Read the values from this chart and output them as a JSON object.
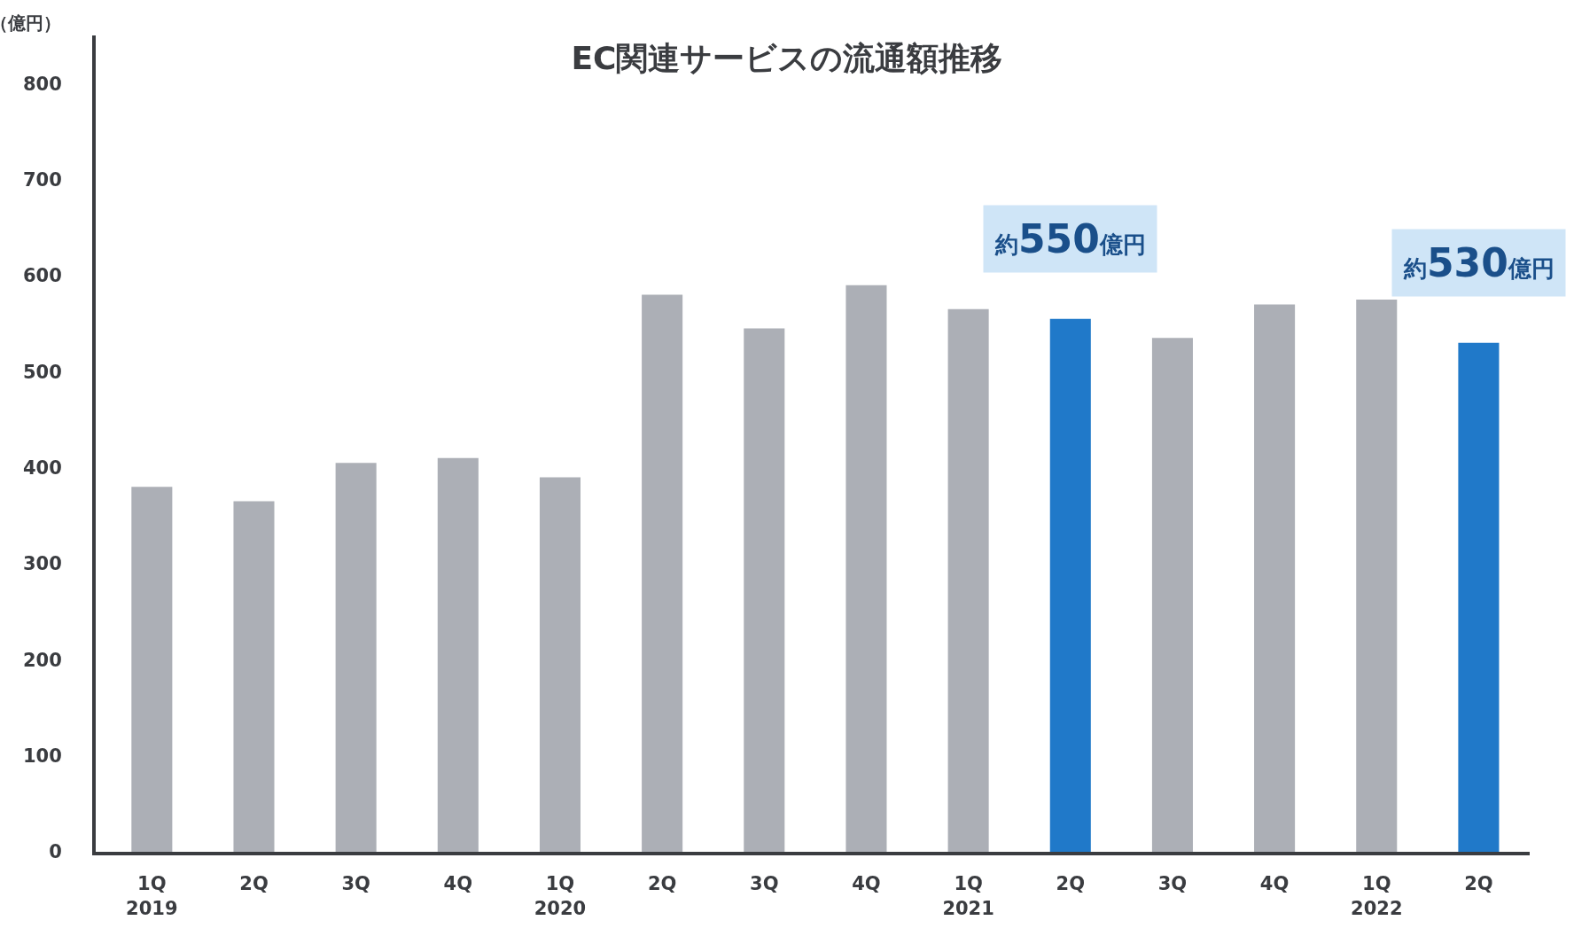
{
  "chart_data": {
    "type": "bar",
    "title": "EC関連サービスの流通額推移",
    "ylabel": "（億円）",
    "categories": [
      "1Q\n2019",
      "2Q",
      "3Q",
      "4Q",
      "1Q\n2020",
      "2Q",
      "3Q",
      "4Q",
      "1Q\n2021",
      "2Q",
      "3Q",
      "4Q",
      "1Q\n2022",
      "2Q"
    ],
    "values": [
      380,
      365,
      405,
      410,
      390,
      580,
      545,
      590,
      565,
      555,
      535,
      570,
      575,
      530
    ],
    "colors": [
      "#acafb6",
      "#acafb6",
      "#acafb6",
      "#acafb6",
      "#acafb6",
      "#acafb6",
      "#acafb6",
      "#acafb6",
      "#acafb6",
      "#2079c9",
      "#acafb6",
      "#acafb6",
      "#acafb6",
      "#2079c9"
    ],
    "ylim": [
      0,
      850
    ],
    "yticks": [
      0,
      100,
      200,
      300,
      400,
      500,
      600,
      700,
      800
    ],
    "annotations": [
      "約550億円",
      "約530億円"
    ],
    "grid": false
  }
}
